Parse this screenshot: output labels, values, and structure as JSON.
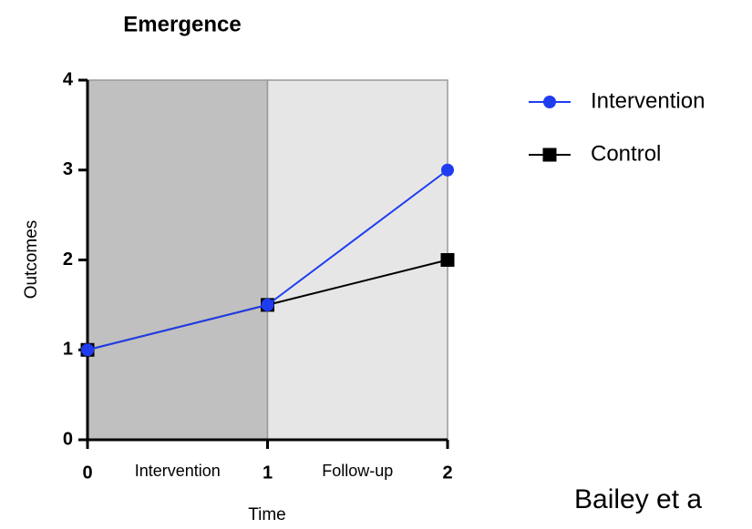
{
  "chart_data": {
    "type": "line",
    "title": "Emergence",
    "xlabel": "Time",
    "ylabel": "Outcomes",
    "x": [
      0,
      1,
      2
    ],
    "xlim": [
      0,
      2
    ],
    "xticks": [
      0,
      1,
      2
    ],
    "ylim": [
      0,
      4
    ],
    "yticks": [
      0,
      1,
      2,
      3,
      4
    ],
    "regions": [
      {
        "label": "Intervention",
        "x": [
          0,
          1
        ],
        "color": "#c0c0c0"
      },
      {
        "label": "Follow-up",
        "x": [
          1,
          2
        ],
        "color": "#e6e6e6"
      }
    ],
    "series": [
      {
        "name": "Intervention",
        "color": "#1f3cf0",
        "marker": "circle",
        "values": [
          1,
          1.5,
          3
        ]
      },
      {
        "name": "Control",
        "color": "#000000",
        "marker": "square",
        "values": [
          1,
          1.5,
          2
        ]
      }
    ],
    "annotation": "Bailey et a"
  }
}
